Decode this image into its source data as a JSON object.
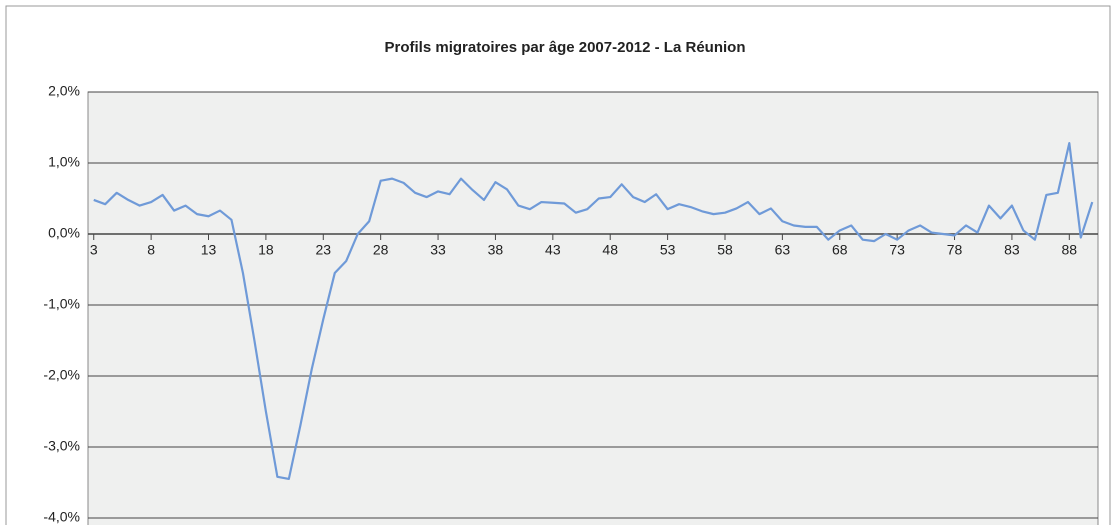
{
  "chart_data": {
    "type": "line",
    "title": "Profils migratoires par âge 2007-2012 - La Réunion",
    "x": [
      3,
      4,
      5,
      6,
      7,
      8,
      9,
      10,
      11,
      12,
      13,
      14,
      15,
      16,
      17,
      18,
      19,
      20,
      21,
      22,
      23,
      24,
      25,
      26,
      27,
      28,
      29,
      30,
      31,
      32,
      33,
      34,
      35,
      36,
      37,
      38,
      39,
      40,
      41,
      42,
      43,
      44,
      45,
      46,
      47,
      48,
      49,
      50,
      51,
      52,
      53,
      54,
      55,
      56,
      57,
      58,
      59,
      60,
      61,
      62,
      63,
      64,
      65,
      66,
      67,
      68,
      69,
      70,
      71,
      72,
      73,
      74,
      75,
      76,
      77,
      78,
      79,
      80,
      81,
      82,
      83,
      84,
      85,
      86,
      87,
      88,
      89,
      90
    ],
    "series": [
      {
        "color": "#6f9ad8",
        "values": [
          0.48,
          0.42,
          0.58,
          0.48,
          0.4,
          0.45,
          0.55,
          0.33,
          0.4,
          0.28,
          0.25,
          0.33,
          0.2,
          -0.55,
          -1.5,
          -2.5,
          -3.42,
          -3.45,
          -2.7,
          -1.9,
          -1.2,
          -0.55,
          -0.38,
          0.0,
          0.18,
          0.75,
          0.78,
          0.72,
          0.58,
          0.52,
          0.6,
          0.56,
          0.78,
          0.62,
          0.48,
          0.73,
          0.63,
          0.4,
          0.35,
          0.45,
          0.44,
          0.43,
          0.3,
          0.35,
          0.5,
          0.52,
          0.7,
          0.52,
          0.45,
          0.56,
          0.35,
          0.42,
          0.38,
          0.32,
          0.28,
          0.3,
          0.36,
          0.45,
          0.28,
          0.36,
          0.18,
          0.12,
          0.1,
          0.1,
          -0.08,
          0.05,
          0.12,
          -0.08,
          -0.1,
          0.0,
          -0.08,
          0.05,
          0.12,
          0.02,
          0.0,
          -0.02,
          0.12,
          0.02,
          0.4,
          0.22,
          0.4,
          0.05,
          -0.08,
          0.55,
          0.58,
          1.28,
          -0.05,
          0.45
        ]
      }
    ],
    "xlim": [
      2.5,
      90.5
    ],
    "xticks": [
      3,
      8,
      13,
      18,
      23,
      28,
      33,
      38,
      43,
      48,
      53,
      58,
      63,
      68,
      73,
      78,
      83,
      88
    ],
    "ylim": [
      -4,
      2
    ],
    "yticks": [
      {
        "value": 2,
        "label": "2,0%"
      },
      {
        "value": 1,
        "label": "1,0%"
      },
      {
        "value": 0,
        "label": "0,0%"
      },
      {
        "value": -1,
        "label": "-1,0%"
      },
      {
        "value": -2,
        "label": "-2,0%"
      },
      {
        "value": -3,
        "label": "-3,0%"
      },
      {
        "value": -4,
        "label": "-4,0%"
      }
    ],
    "grid": true
  }
}
